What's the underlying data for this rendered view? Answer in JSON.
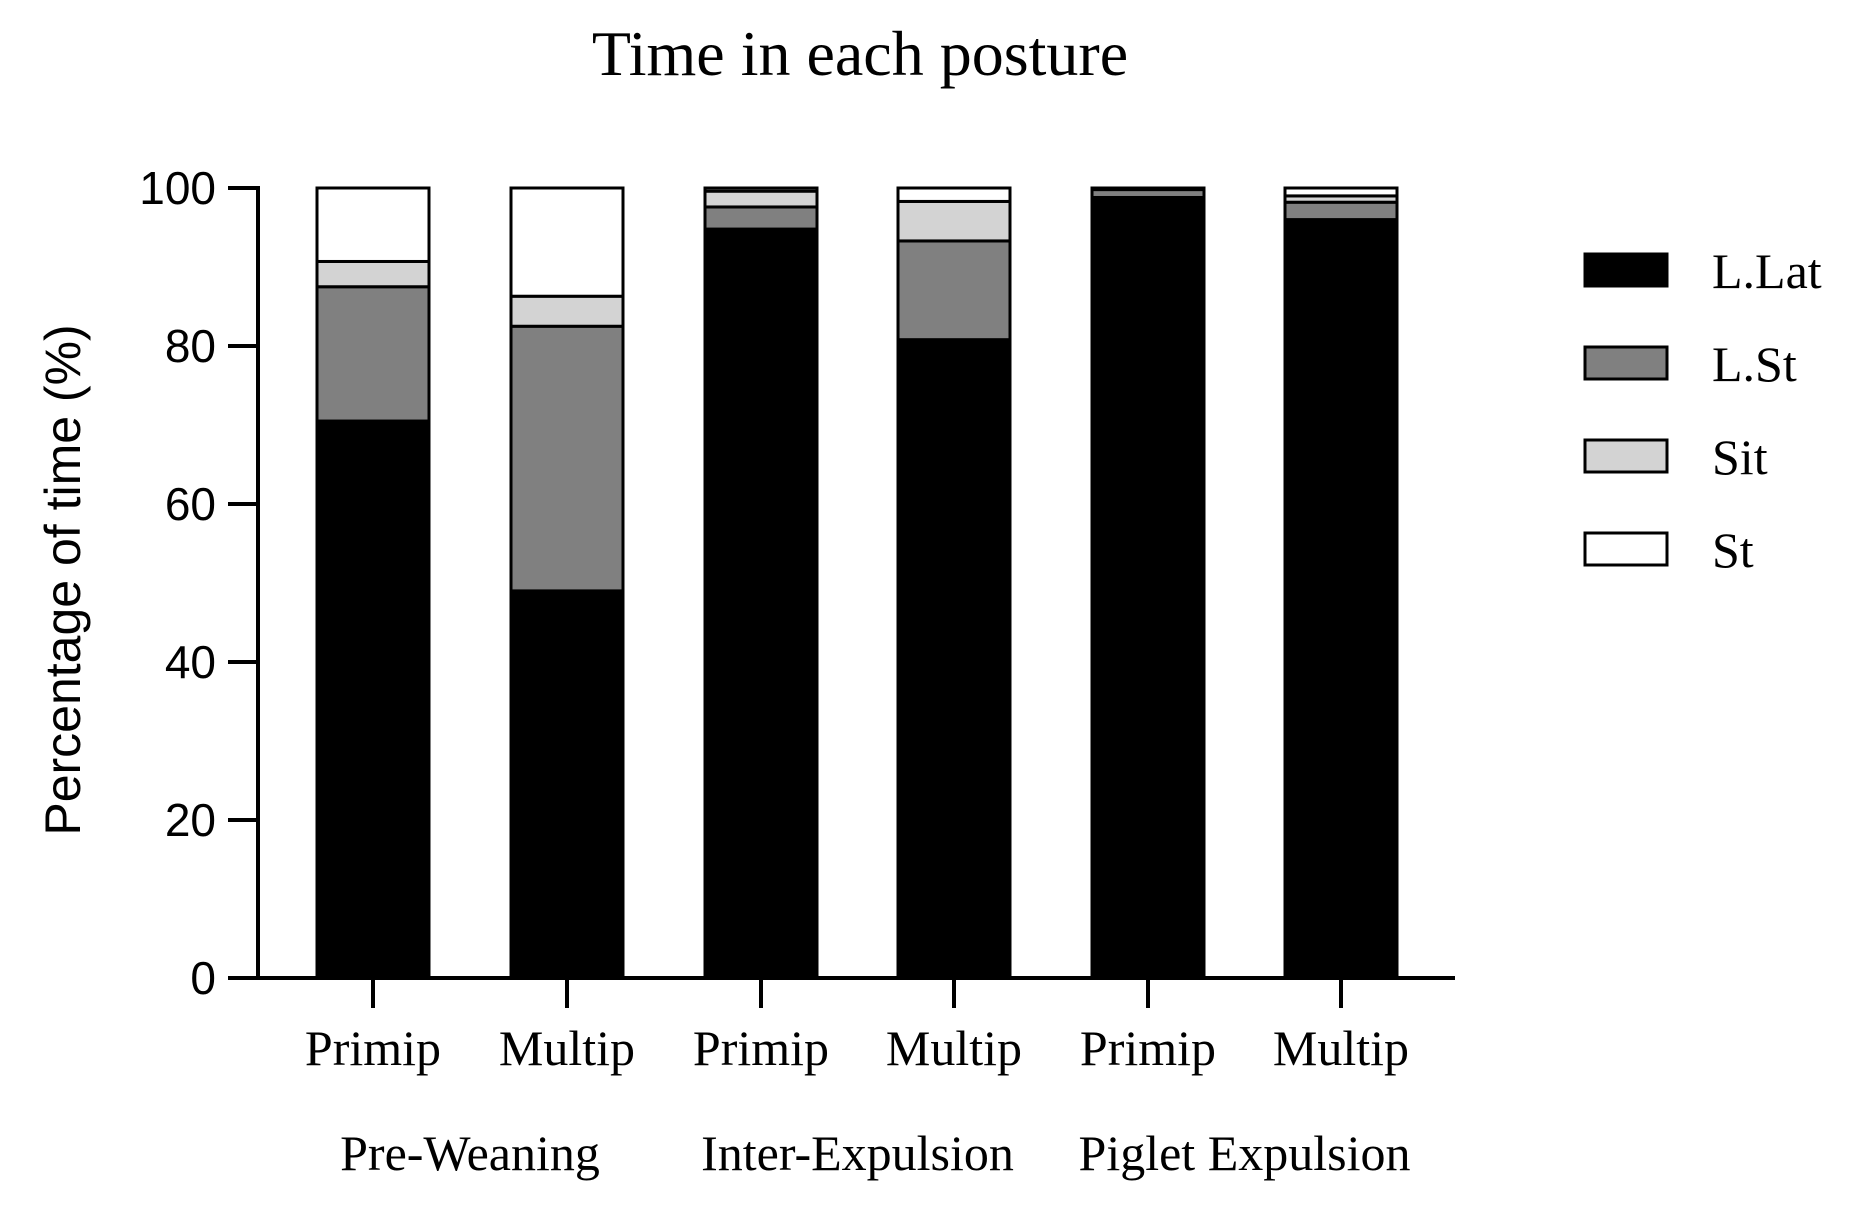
{
  "chart_data": {
    "type": "bar",
    "stacked": true,
    "title": "Time in each posture",
    "ylabel": "Percentage of time (%)",
    "xlabel": "",
    "ylim": [
      0,
      100
    ],
    "yticks": [
      0,
      20,
      40,
      60,
      80,
      100
    ],
    "categories": [
      "Primip",
      "Multip",
      "Primip",
      "Multip",
      "Primip",
      "Multip"
    ],
    "groups": [
      {
        "label": "Pre-Weaning",
        "categories": [
          0,
          1
        ]
      },
      {
        "label": "Inter-Expulsion",
        "categories": [
          2,
          3
        ]
      },
      {
        "label": "Piglet Expulsion",
        "categories": [
          4,
          5
        ]
      }
    ],
    "series": [
      {
        "name": "L.Lat",
        "color": "#000000",
        "values": [
          70.5,
          49,
          94.8,
          80.8,
          98.8,
          96
        ]
      },
      {
        "name": "L.St",
        "color": "#808080",
        "values": [
          17,
          33.5,
          2.8,
          12.5,
          1,
          2.2
        ]
      },
      {
        "name": "Sit",
        "color": "#d3d3d3",
        "values": [
          3.2,
          3.8,
          2,
          5,
          0.2,
          0.8
        ]
      },
      {
        "name": "St",
        "color": "#ffffff",
        "values": [
          9.3,
          13.7,
          0.4,
          1.7,
          0,
          1
        ]
      }
    ],
    "grid": false,
    "legend": "right"
  }
}
